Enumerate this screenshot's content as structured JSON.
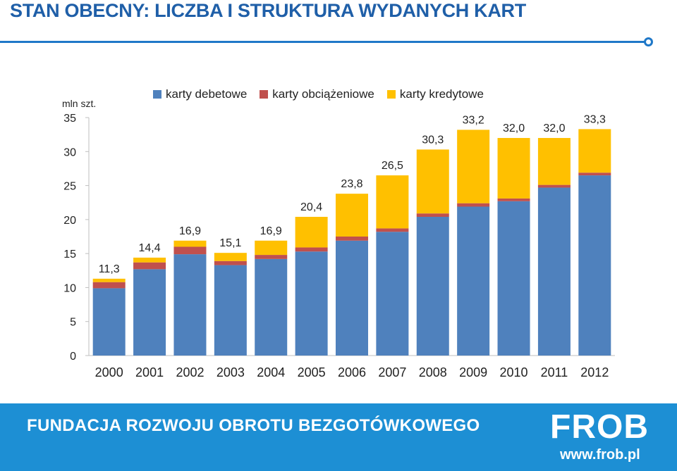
{
  "page": {
    "title": "STAN OBECNY: LICZBA I STRUKTURA WYDANYCH KART",
    "footer_text": "FUNDACJA ROZWOJU OBROTU BEZGOTÓWKOWEGO",
    "logo_text": "FROB",
    "url": "www.frob.pl"
  },
  "chart_data": {
    "type": "bar",
    "stacked": true,
    "unit_label": "mln szt.",
    "categories": [
      "2000",
      "2001",
      "2002",
      "2003",
      "2004",
      "2005",
      "2006",
      "2007",
      "2008",
      "2009",
      "2010",
      "2011",
      "2012"
    ],
    "series": [
      {
        "name": "karty debetowe",
        "color": "#4f81bd",
        "values": [
          9.9,
          12.7,
          14.9,
          13.3,
          14.2,
          15.3,
          16.9,
          18.2,
          20.4,
          21.9,
          22.7,
          24.7,
          26.5
        ]
      },
      {
        "name": "karty obciążeniowe",
        "color": "#c0504d",
        "values": [
          0.9,
          1.0,
          1.1,
          0.6,
          0.6,
          0.6,
          0.6,
          0.5,
          0.5,
          0.5,
          0.4,
          0.4,
          0.4
        ]
      },
      {
        "name": "karty kredytowe",
        "color": "#ffc000",
        "values": [
          0.5,
          0.7,
          0.9,
          1.2,
          2.1,
          4.5,
          6.3,
          7.8,
          9.4,
          10.8,
          8.9,
          6.9,
          6.4
        ]
      }
    ],
    "totals": [
      "11,3",
      "14,4",
      "16,9",
      "15,1",
      "16,9",
      "20,4",
      "23,8",
      "26,5",
      "30,3",
      "33,2",
      "32,0",
      "32,0",
      "33,3"
    ],
    "ylim": [
      0,
      35
    ],
    "yticks": [
      0,
      5,
      10,
      15,
      20,
      25,
      30,
      35
    ],
    "grid": false,
    "legend_position": "top"
  }
}
